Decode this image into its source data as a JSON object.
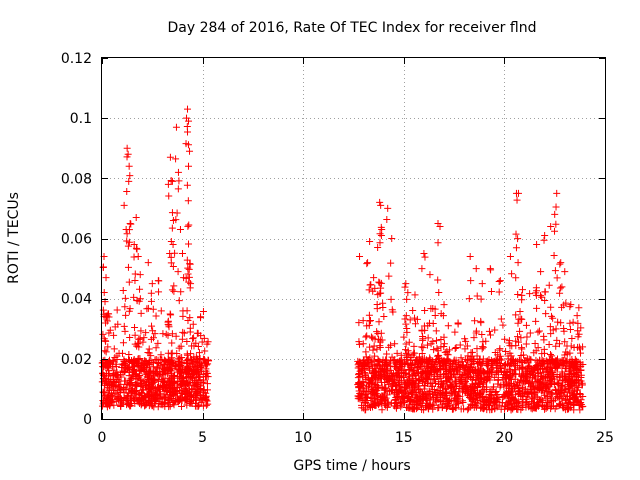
{
  "chart_data": {
    "type": "scatter",
    "title": "Day 284 of 2016, Rate Of TEC Index for receiver flnd",
    "xlabel": "GPS time / hours",
    "ylabel": "ROTI / TECUs",
    "xlim": [
      0,
      25
    ],
    "ylim": [
      0,
      0.12
    ],
    "x_ticks": [
      "0",
      "5",
      "10",
      "15",
      "20",
      "25"
    ],
    "x_tick_values": [
      0,
      5,
      10,
      15,
      20,
      25
    ],
    "y_ticks": [
      "0",
      "0.02",
      "0.04",
      "0.06",
      "0.08",
      "0.1",
      "0.12"
    ],
    "y_tick_values": [
      0,
      0.02,
      0.04,
      0.06,
      0.08,
      0.1,
      0.12
    ],
    "grid": true,
    "marker": "+",
    "color": "#ff0000",
    "series": [
      {
        "name": "ROTI",
        "segments": [
          {
            "x_range": [
              0.0,
              5.3
            ],
            "typical_min": 0.004,
            "typical_max": 0.02
          },
          {
            "x_range": [
              12.7,
              23.9
            ],
            "typical_min": 0.003,
            "typical_max": 0.02
          }
        ],
        "notable_points": [
          [
            0.1,
            0.054
          ],
          [
            0.2,
            0.047
          ],
          [
            0.15,
            0.039
          ],
          [
            0.3,
            0.035
          ],
          [
            1.1,
            0.071
          ],
          [
            1.2,
            0.063
          ],
          [
            1.25,
            0.09
          ],
          [
            1.3,
            0.088
          ],
          [
            1.35,
            0.084
          ],
          [
            1.4,
            0.065
          ],
          [
            1.6,
            0.058
          ],
          [
            1.7,
            0.067
          ],
          [
            1.8,
            0.054
          ],
          [
            1.9,
            0.048
          ],
          [
            2.3,
            0.052
          ],
          [
            2.5,
            0.045
          ],
          [
            2.8,
            0.046
          ],
          [
            3.3,
            0.078
          ],
          [
            3.4,
            0.087
          ],
          [
            3.5,
            0.079
          ],
          [
            3.55,
            0.066
          ],
          [
            3.7,
            0.097
          ],
          [
            3.8,
            0.082
          ],
          [
            3.9,
            0.063
          ],
          [
            4.0,
            0.055
          ],
          [
            4.2,
            0.1
          ],
          [
            4.25,
            0.103
          ],
          [
            4.3,
            0.099
          ],
          [
            4.35,
            0.089
          ],
          [
            4.3,
            0.084
          ],
          [
            4.4,
            0.045
          ],
          [
            4.9,
            0.034
          ],
          [
            12.8,
            0.054
          ],
          [
            13.2,
            0.052
          ],
          [
            13.3,
            0.059
          ],
          [
            13.5,
            0.047
          ],
          [
            13.7,
            0.057
          ],
          [
            13.8,
            0.072
          ],
          [
            13.85,
            0.071
          ],
          [
            13.9,
            0.063
          ],
          [
            14.2,
            0.07
          ],
          [
            14.4,
            0.06
          ],
          [
            15.1,
            0.045
          ],
          [
            15.2,
            0.042
          ],
          [
            15.9,
            0.05
          ],
          [
            16.0,
            0.055
          ],
          [
            16.3,
            0.048
          ],
          [
            16.7,
            0.065
          ],
          [
            16.8,
            0.064
          ],
          [
            17.0,
            0.038
          ],
          [
            18.3,
            0.054
          ],
          [
            18.6,
            0.05
          ],
          [
            18.9,
            0.045
          ],
          [
            19.3,
            0.05
          ],
          [
            19.8,
            0.046
          ],
          [
            20.3,
            0.054
          ],
          [
            20.6,
            0.075
          ],
          [
            20.7,
            0.075
          ],
          [
            20.9,
            0.043
          ],
          [
            21.6,
            0.058
          ],
          [
            21.8,
            0.049
          ],
          [
            22.0,
            0.061
          ],
          [
            22.3,
            0.064
          ],
          [
            22.5,
            0.068
          ],
          [
            22.6,
            0.075
          ],
          [
            22.8,
            0.052
          ],
          [
            23.0,
            0.049
          ],
          [
            23.3,
            0.038
          ],
          [
            23.7,
            0.037
          ]
        ]
      }
    ]
  }
}
